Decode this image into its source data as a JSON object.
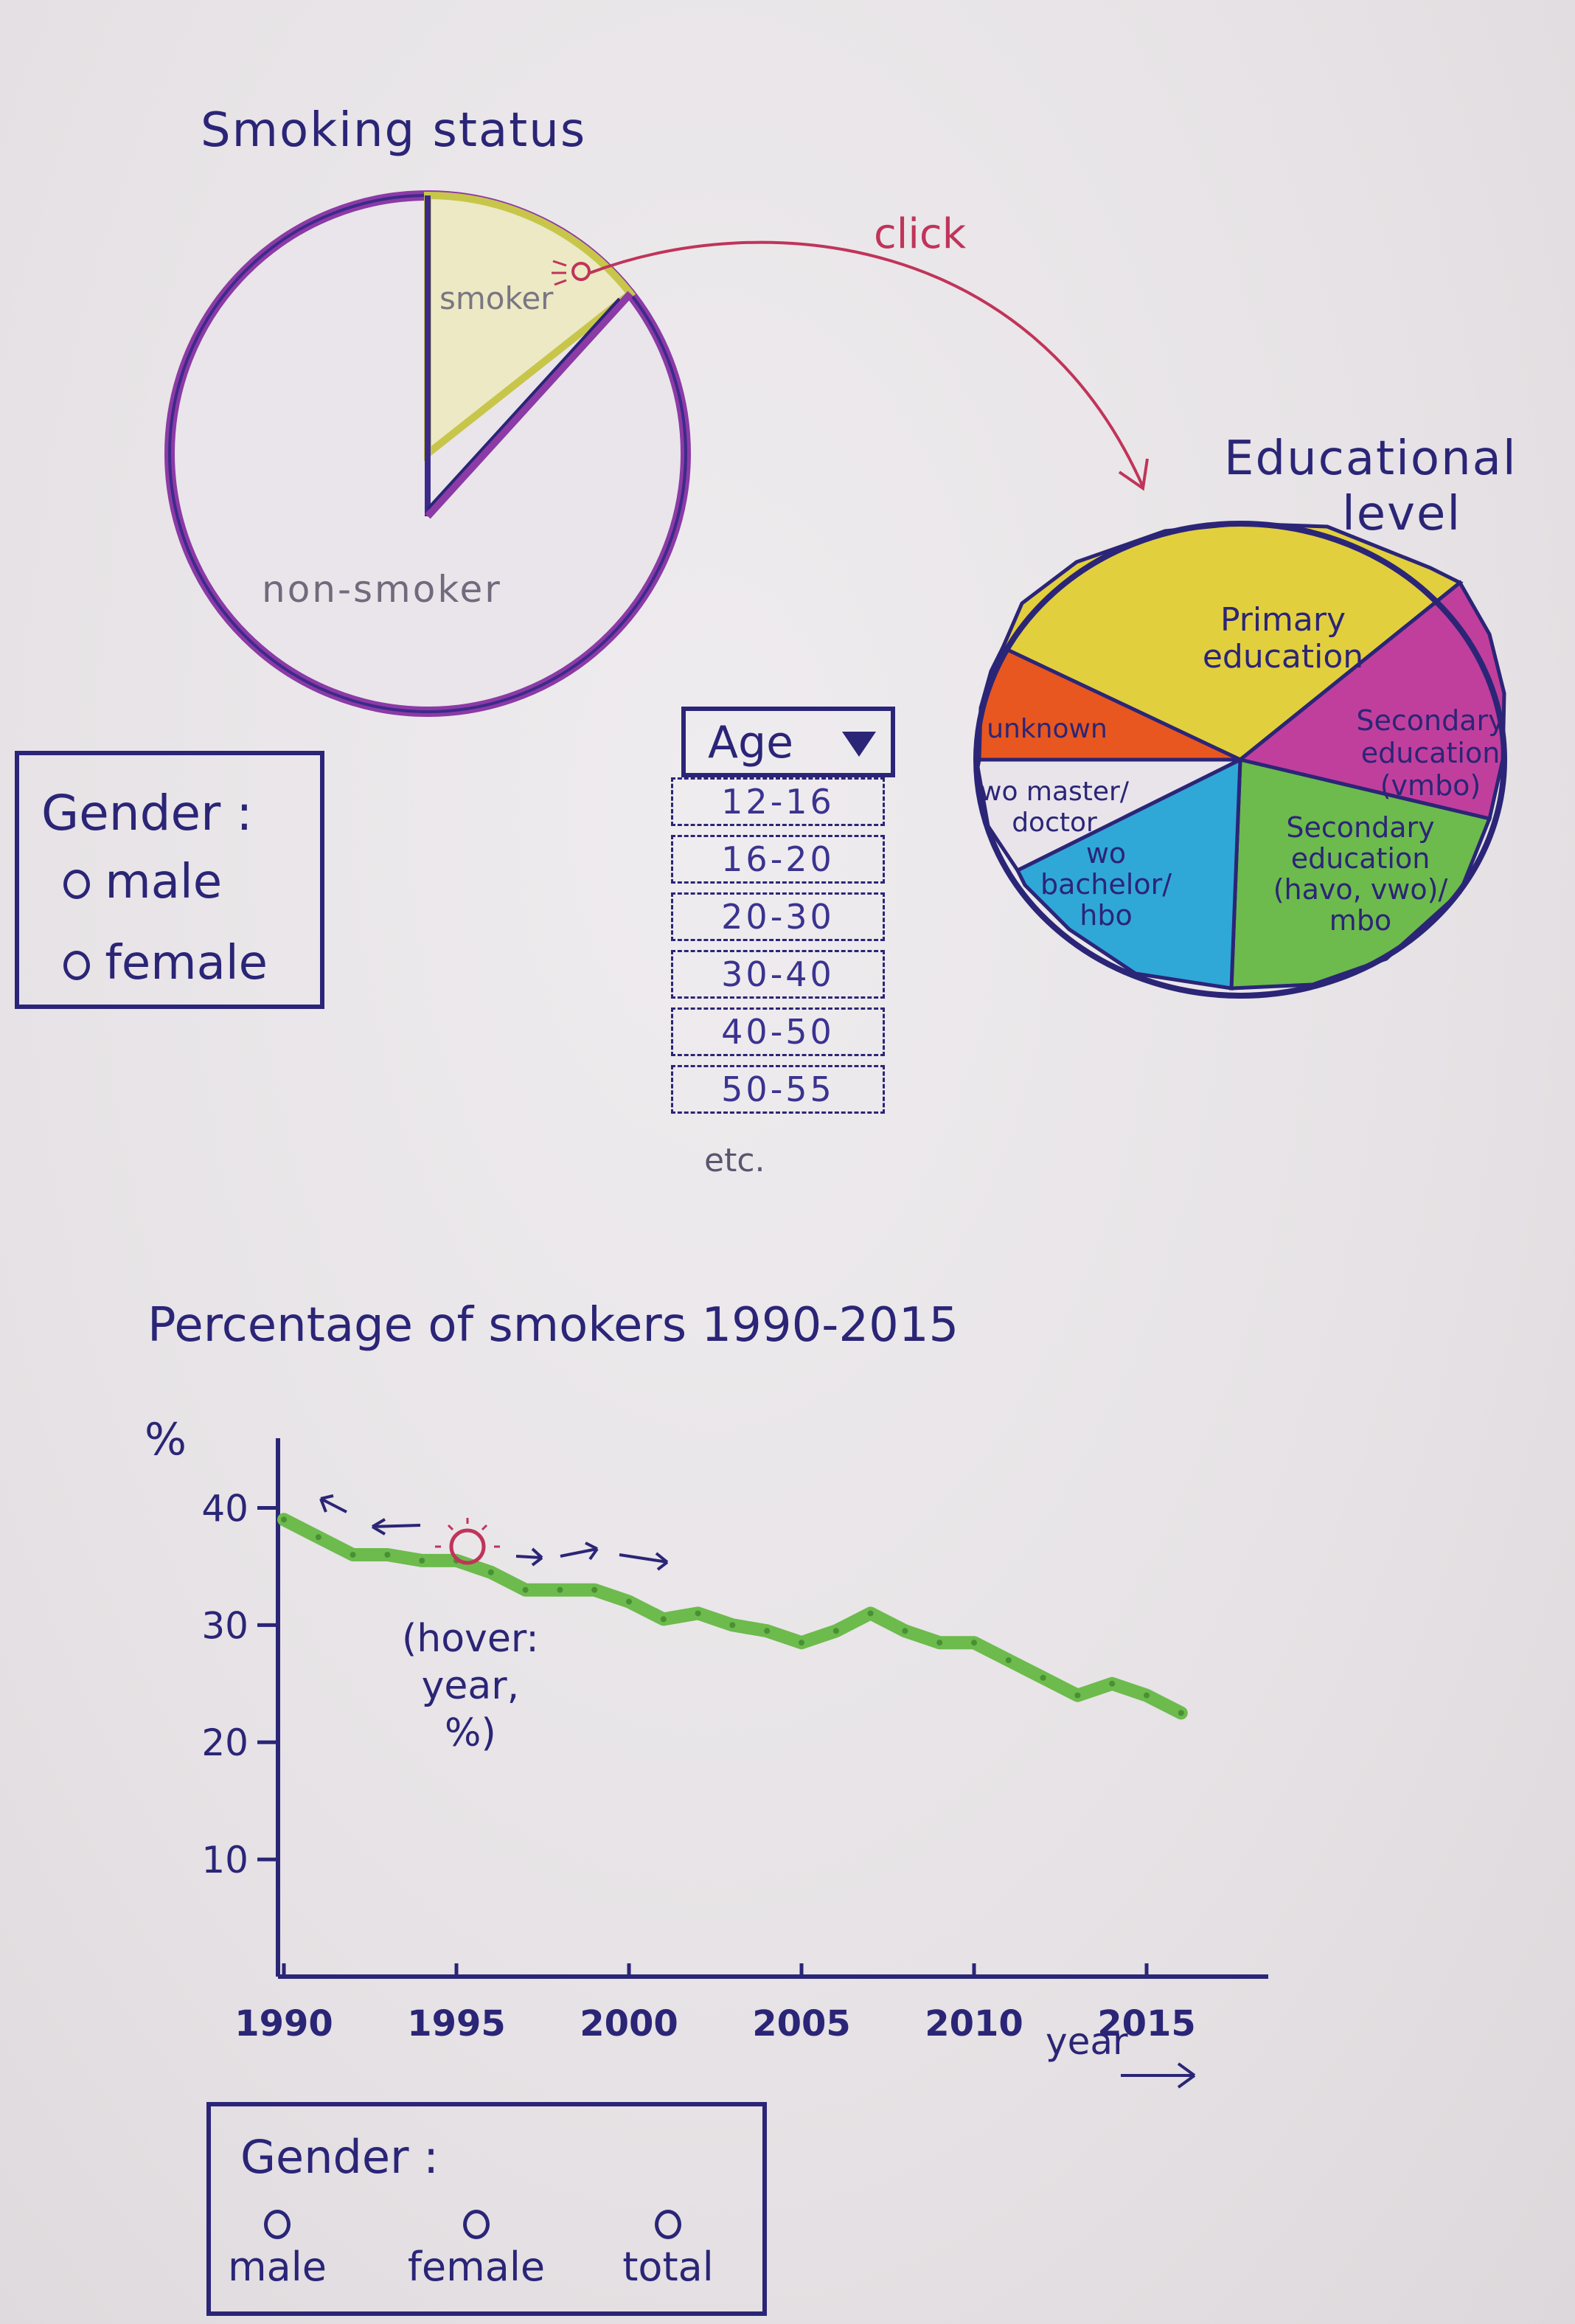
{
  "smoking_pie": {
    "title": "Smoking status",
    "smoker_label": "smoker",
    "nonsmoker_label": "non-smoker",
    "click_annotation": "click"
  },
  "gender_filter_top": {
    "title": "Gender :",
    "options": [
      "male",
      "female"
    ]
  },
  "age_dropdown": {
    "label": "Age",
    "items": [
      "12-16",
      "16-20",
      "20-30",
      "30-40",
      "40-50",
      "50-55"
    ],
    "more": "etc."
  },
  "education_pie": {
    "title_line1": "Educational",
    "title_line2": "level",
    "slices": [
      {
        "label_lines": [
          "Primary",
          "education"
        ],
        "color": "#e2cf3e"
      },
      {
        "label_lines": [
          "Secondary",
          "education",
          "(vmbo)"
        ],
        "color": "#c13f9c"
      },
      {
        "label_lines": [
          "Secondary",
          "education",
          "(havo, vwo)/",
          "mbo"
        ],
        "color": "#6cbb4c"
      },
      {
        "label_lines": [
          "wo",
          "bachelor/",
          "hbo"
        ],
        "color": "#2fa8d8"
      },
      {
        "label_lines": [
          "wo master/",
          "doctor"
        ],
        "color": "#e8e4ea"
      },
      {
        "label_lines": [
          "unknown"
        ],
        "color": "#e8571f"
      }
    ]
  },
  "chart_data": {
    "type": "line",
    "title": "Percentage of smokers 1990-2015",
    "ylabel": "%",
    "xlabel": "year",
    "ylim": [
      0,
      45
    ],
    "xlim": [
      1990,
      2017
    ],
    "xticks": [
      1990,
      1995,
      2000,
      2005,
      2010,
      2015
    ],
    "yticks": [
      10,
      20,
      30,
      40
    ],
    "x": [
      1990,
      1991,
      1992,
      1993,
      1994,
      1995,
      1996,
      1997,
      1998,
      1999,
      2000,
      2001,
      2002,
      2003,
      2004,
      2005,
      2006,
      2007,
      2008,
      2009,
      2010,
      2011,
      2012,
      2013,
      2014,
      2015,
      2016
    ],
    "y": [
      39,
      37.5,
      36,
      36,
      35.5,
      35.5,
      34.5,
      33,
      33,
      33,
      32,
      30.5,
      31,
      30,
      29.5,
      28.5,
      29.5,
      31,
      29.5,
      28.5,
      28.5,
      27,
      25.5,
      24,
      25,
      24,
      22.5
    ],
    "line_color": "#6cbb4c",
    "hover_annotation_lines": [
      "(hover:",
      "year,",
      "%)"
    ]
  },
  "gender_filter_bottom": {
    "title": "Gender :",
    "options": [
      "male",
      "female",
      "total"
    ]
  }
}
